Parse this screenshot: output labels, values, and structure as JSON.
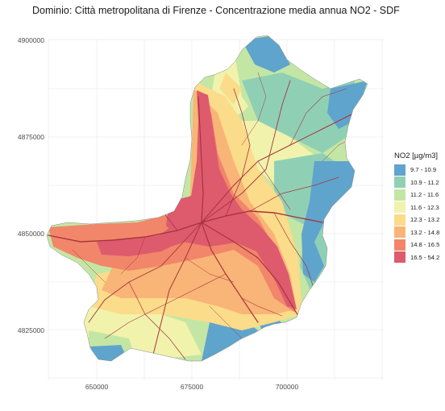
{
  "title": "Dominio: Città metropolitana di Firenze - Concentrazione media annua NO2 - SDF",
  "y_axis": {
    "ticks": [
      {
        "value": 4900000,
        "label": "4900000"
      },
      {
        "value": 4875000,
        "label": "4875000"
      },
      {
        "value": 4850000,
        "label": "4850000"
      },
      {
        "value": 4825000,
        "label": "4825000"
      }
    ]
  },
  "x_axis": {
    "ticks": [
      {
        "value": 650000,
        "label": "650000"
      },
      {
        "value": 675000,
        "label": "675000"
      },
      {
        "value": 700000,
        "label": "700000"
      }
    ]
  },
  "legend": {
    "title": "NO2 [µg/m3]",
    "placement": "right",
    "classes": [
      {
        "label": "9.7 - 10.9",
        "color": "#5fa4cd"
      },
      {
        "label": "10.9 - 11.2",
        "color": "#8fd0b4"
      },
      {
        "label": "11.2 - 11.6",
        "color": "#c4e6a4"
      },
      {
        "label": "11.6 - 12.3",
        "color": "#f1f3ac"
      },
      {
        "label": "12.3 - 13.2",
        "color": "#fbdc8a"
      },
      {
        "label": "13.2 - 14.8",
        "color": "#f9b577"
      },
      {
        "label": "14.8 - 16.5",
        "color": "#f1866a"
      },
      {
        "label": "16.5 - 54.2",
        "color": "#dd5b6d"
      }
    ]
  },
  "grid": true,
  "road_color": "#a8333e"
}
